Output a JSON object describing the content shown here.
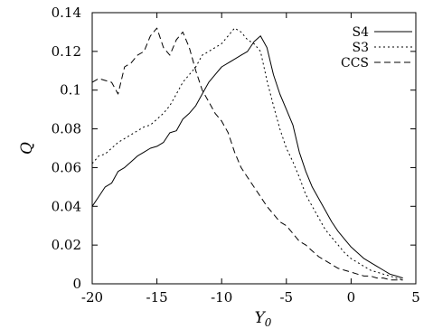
{
  "chart_data": {
    "type": "line",
    "title": "",
    "xlabel": "Y0",
    "ylabel": "Q",
    "xlim": [
      -20,
      5
    ],
    "ylim": [
      0,
      0.14
    ],
    "x_ticks": [
      -20,
      -15,
      -10,
      -5,
      0,
      5
    ],
    "x_tick_labels": [
      "-20",
      "-15",
      "-10",
      "-5",
      "0",
      "5"
    ],
    "y_ticks": [
      0,
      0.02,
      0.04,
      0.06,
      0.08,
      0.1,
      0.12,
      0.14
    ],
    "y_tick_labels": [
      "0",
      "0.02",
      "0.04",
      "0.06",
      "0.08",
      "0.1",
      "0.12",
      "0.14"
    ],
    "grid": false,
    "legend_position": "top-right",
    "series": [
      {
        "name": "S4",
        "dash": "solid",
        "x": [
          -20,
          -19.5,
          -19,
          -18.5,
          -18,
          -17.5,
          -17,
          -16.5,
          -16,
          -15.5,
          -15,
          -14.5,
          -14,
          -13.5,
          -13,
          -12.5,
          -12,
          -11.5,
          -11,
          -10.5,
          -10,
          -9.5,
          -9,
          -8.5,
          -8,
          -7.5,
          -7,
          -6.5,
          -6,
          -5.5,
          -5,
          -4.5,
          -4,
          -3.5,
          -3,
          -2.5,
          -2,
          -1.5,
          -1,
          -0.5,
          0,
          0.5,
          1,
          1.5,
          2,
          2.5,
          3,
          3.5,
          4
        ],
        "y": [
          0.04,
          0.045,
          0.05,
          0.052,
          0.058,
          0.06,
          0.063,
          0.066,
          0.068,
          0.07,
          0.071,
          0.073,
          0.078,
          0.079,
          0.085,
          0.088,
          0.092,
          0.098,
          0.104,
          0.108,
          0.112,
          0.114,
          0.116,
          0.118,
          0.12,
          0.125,
          0.128,
          0.122,
          0.108,
          0.098,
          0.09,
          0.082,
          0.068,
          0.058,
          0.05,
          0.044,
          0.038,
          0.032,
          0.027,
          0.023,
          0.019,
          0.016,
          0.013,
          0.011,
          0.009,
          0.007,
          0.005,
          0.004,
          0.003
        ]
      },
      {
        "name": "S3",
        "dash": "dotted",
        "x": [
          -20,
          -19.5,
          -19,
          -18.5,
          -18,
          -17.5,
          -17,
          -16.5,
          -16,
          -15.5,
          -15,
          -14.5,
          -14,
          -13.5,
          -13,
          -12.5,
          -12,
          -11.5,
          -11,
          -10.5,
          -10,
          -9.5,
          -9,
          -8.5,
          -8,
          -7.5,
          -7,
          -6.5,
          -6,
          -5.5,
          -5,
          -4.5,
          -4,
          -3.5,
          -3,
          -2.5,
          -2,
          -1.5,
          -1,
          -0.5,
          0,
          0.5,
          1,
          1.5,
          2,
          2.5,
          3,
          3.5,
          4
        ],
        "y": [
          0.062,
          0.066,
          0.067,
          0.07,
          0.073,
          0.075,
          0.077,
          0.079,
          0.081,
          0.082,
          0.085,
          0.088,
          0.092,
          0.098,
          0.104,
          0.108,
          0.112,
          0.118,
          0.12,
          0.122,
          0.124,
          0.128,
          0.132,
          0.13,
          0.126,
          0.124,
          0.12,
          0.105,
          0.092,
          0.08,
          0.07,
          0.063,
          0.055,
          0.046,
          0.04,
          0.034,
          0.028,
          0.024,
          0.02,
          0.016,
          0.013,
          0.011,
          0.009,
          0.007,
          0.006,
          0.005,
          0.004,
          0.003,
          0.002
        ]
      },
      {
        "name": "CCS",
        "dash": "dashed",
        "x": [
          -20,
          -19.5,
          -19,
          -18.5,
          -18,
          -17.5,
          -17,
          -16.5,
          -16,
          -15.5,
          -15,
          -14.5,
          -14,
          -13.5,
          -13,
          -12.5,
          -12,
          -11.5,
          -11,
          -10.5,
          -10,
          -9.5,
          -9,
          -8.5,
          -8,
          -7.5,
          -7,
          -6.5,
          -6,
          -5.5,
          -5,
          -4.5,
          -4,
          -3.5,
          -3,
          -2.5,
          -2,
          -1.5,
          -1,
          -0.5,
          0,
          0.5,
          1,
          1.5,
          2,
          2.5,
          3,
          3.5,
          4
        ],
        "y": [
          0.104,
          0.106,
          0.105,
          0.104,
          0.098,
          0.112,
          0.114,
          0.118,
          0.12,
          0.128,
          0.132,
          0.122,
          0.118,
          0.126,
          0.13,
          0.122,
          0.11,
          0.1,
          0.094,
          0.088,
          0.084,
          0.078,
          0.068,
          0.06,
          0.055,
          0.05,
          0.045,
          0.04,
          0.036,
          0.032,
          0.03,
          0.026,
          0.022,
          0.02,
          0.017,
          0.014,
          0.012,
          0.01,
          0.008,
          0.007,
          0.006,
          0.005,
          0.004,
          0.004,
          0.003,
          0.003,
          0.002,
          0.002,
          0.002
        ]
      }
    ]
  }
}
